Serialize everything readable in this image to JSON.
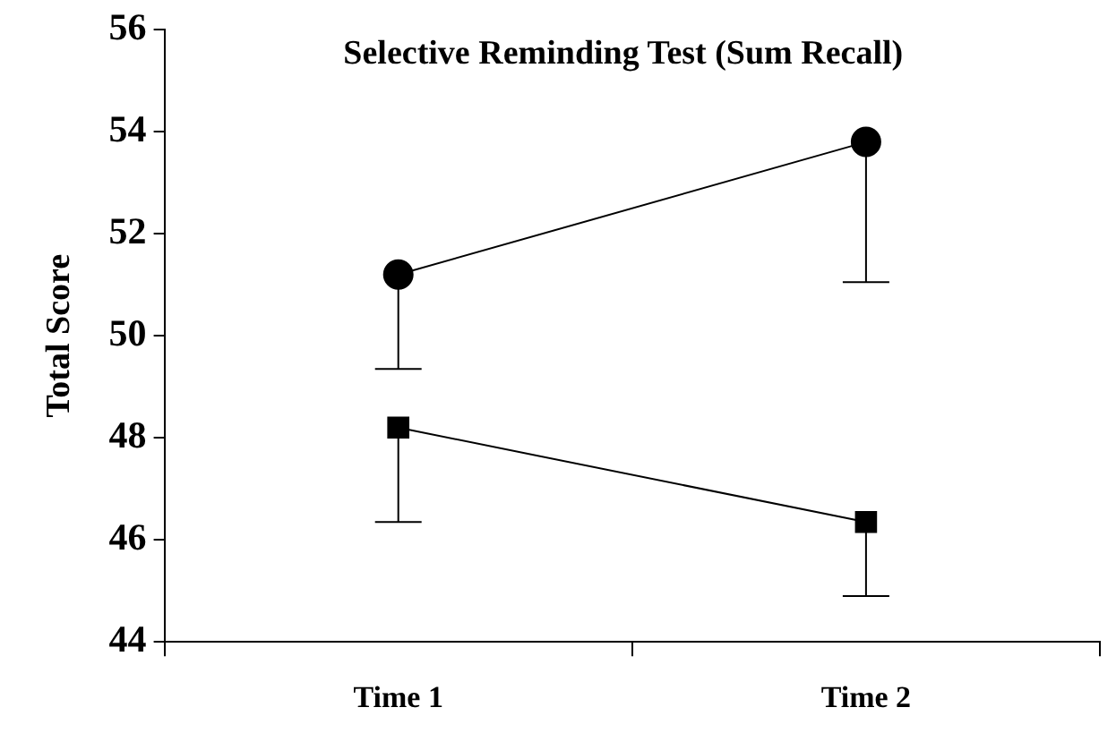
{
  "chart_data": {
    "type": "line",
    "title": "Selective Reminding Test (Sum Recall)",
    "ylabel": "Total Score",
    "categories": [
      "Time 1",
      "Time 2"
    ],
    "series": [
      {
        "color": "#000000",
        "marker": "circle",
        "values": [
          51.2,
          53.8
        ],
        "errors": [
          [
            49.35,
            51.2
          ],
          [
            51.05,
            53.8
          ]
        ]
      },
      {
        "color": "#000000",
        "marker": "square",
        "values": [
          48.2,
          46.35
        ],
        "errors": [
          [
            46.35,
            48.2
          ],
          [
            44.9,
            46.35
          ]
        ]
      }
    ],
    "ylim": [
      44,
      56
    ],
    "yticks": [
      44,
      46,
      48,
      50,
      52,
      54,
      56
    ],
    "grid": false,
    "legend": false
  }
}
